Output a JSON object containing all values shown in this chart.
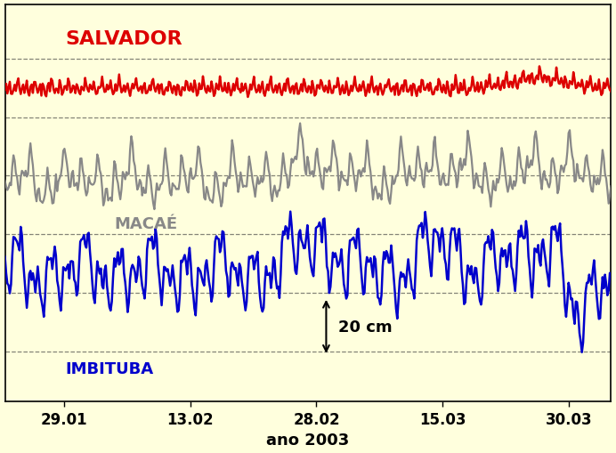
{
  "xlabel": "ano 2003",
  "background_color": "#FFFFDD",
  "grid_color": "#333333",
  "x_tick_labels": [
    "29.01",
    "13.02",
    "28.02",
    "15.03",
    "30.03"
  ],
  "tick_days": [
    7,
    22,
    37,
    52,
    67
  ],
  "total_days": 72,
  "salvador_color": "#DD0000",
  "macae_color": "#888888",
  "imbituba_color": "#0000CC",
  "salvador_label": "SALVADOR",
  "macae_label": "MACAÉ",
  "imbituba_label": "IMBITUBA",
  "scale_label": "20 cm",
  "n_points": 500,
  "seed": 7,
  "salvador_base": 3.5,
  "macae_base": 1.3,
  "imbituba_base": -0.9
}
